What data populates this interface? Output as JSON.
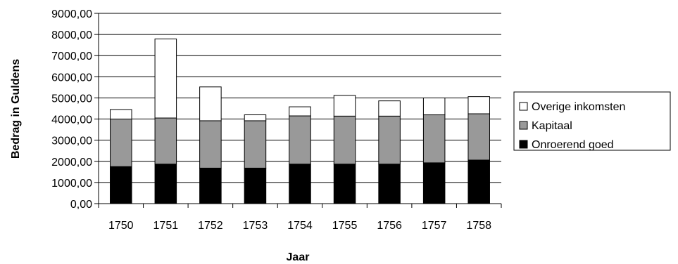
{
  "chart_data": {
    "type": "bar",
    "stacked": true,
    "xlabel": "Jaar",
    "ylabel": "Bedrag in Guldens",
    "ylim": [
      0,
      9000
    ],
    "ytick_step": 1000,
    "ytick_labels": [
      "0,00",
      "1000,00",
      "2000,00",
      "3000,00",
      "4000,00",
      "5000,00",
      "6000,00",
      "7000,00",
      "8000,00",
      "9000,00"
    ],
    "grid": "horizontal",
    "legend_position": "right",
    "categories": [
      "1750",
      "1751",
      "1752",
      "1753",
      "1754",
      "1755",
      "1756",
      "1757",
      "1758"
    ],
    "series": [
      {
        "name": "Onroerend goed",
        "color": "#000000",
        "values": [
          1750,
          1870,
          1680,
          1680,
          1870,
          1870,
          1870,
          1930,
          2060
        ]
      },
      {
        "name": "Kapitaal",
        "color": "#999999",
        "values": [
          2250,
          2180,
          2240,
          2240,
          2280,
          2270,
          2270,
          2270,
          2190
        ]
      },
      {
        "name": "Overige inkomsten",
        "color": "#ffffff",
        "values": [
          450,
          3740,
          1600,
          280,
          430,
          980,
          720,
          800,
          810
        ]
      }
    ],
    "legend_order": [
      "Overige inkomsten",
      "Kapitaal",
      "Onroerend goed"
    ]
  }
}
